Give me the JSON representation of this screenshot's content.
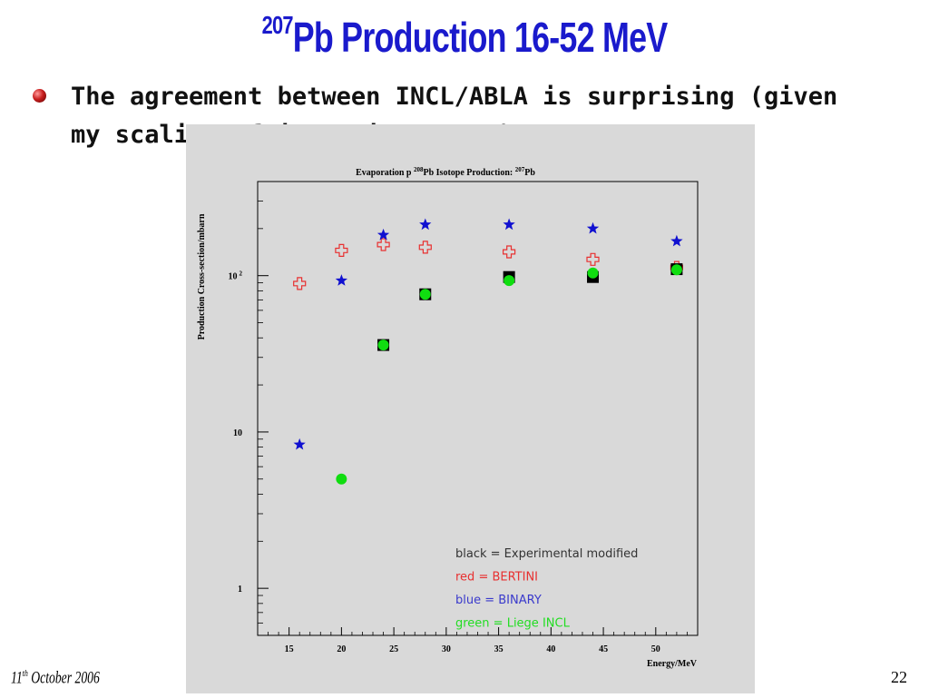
{
  "slide": {
    "title_sup": "207",
    "title_main": "Pb Production 16-52 MeV",
    "bullet_text": "The agreement between INCL/ABLA is surprising (given my scaling of isomeric states)",
    "footer_date_day": "11",
    "footer_date_suffix": "th",
    "footer_date_rest": " October 2006",
    "page_number": "22"
  },
  "colors": {
    "title": "#1a1acc",
    "black": "#000000",
    "red": "#e83030",
    "blue": "#1010d0",
    "green": "#10dd10"
  },
  "chart_data": {
    "type": "scatter",
    "title_parts": [
      "Evaporation p ",
      "208",
      "Pb Isotope Production: ",
      "207",
      "Pb"
    ],
    "xlabel": "Energy/MeV",
    "ylabel": "Production Cross-section/mbarn",
    "xlim": [
      12,
      54
    ],
    "ylim": [
      0.5,
      400
    ],
    "y_scale": "log",
    "x_ticks": [
      15,
      20,
      25,
      30,
      35,
      40,
      45,
      50
    ],
    "y_ticks": [
      {
        "value": 1,
        "label": "1"
      },
      {
        "value": 10,
        "label": "10"
      },
      {
        "value": 100,
        "label": "10",
        "exp": "2"
      }
    ],
    "legend": {
      "placement": "bottom-right",
      "entries": [
        {
          "text": "black = Experimental modified",
          "color": "#333333"
        },
        {
          "text": "red = BERTINI",
          "color": "#e83030"
        },
        {
          "text": "blue = BINARY",
          "color": "#3a3acc"
        },
        {
          "text": "green = Liege INCL",
          "color": "#22dd22"
        }
      ]
    },
    "series": [
      {
        "key": "black",
        "marker": "square",
        "color": "#000000",
        "x": [
          24,
          28,
          36,
          44,
          52
        ],
        "y": [
          36,
          76,
          98,
          98,
          110
        ]
      },
      {
        "key": "red",
        "marker": "open-cross",
        "color": "#e83030",
        "x": [
          16,
          20,
          24,
          28,
          36,
          44,
          52
        ],
        "y": [
          89,
          145,
          158,
          152,
          142,
          127,
          113
        ]
      },
      {
        "key": "blue",
        "marker": "star",
        "color": "#1010d0",
        "x": [
          16,
          20,
          24,
          28,
          36,
          44,
          52
        ],
        "y": [
          8.3,
          93,
          182,
          212,
          212,
          200,
          166
        ]
      },
      {
        "key": "green",
        "marker": "circle",
        "color": "#10dd10",
        "x": [
          20,
          24,
          28,
          36,
          44,
          52
        ],
        "y": [
          5,
          36,
          76,
          93,
          104,
          109
        ]
      }
    ]
  }
}
